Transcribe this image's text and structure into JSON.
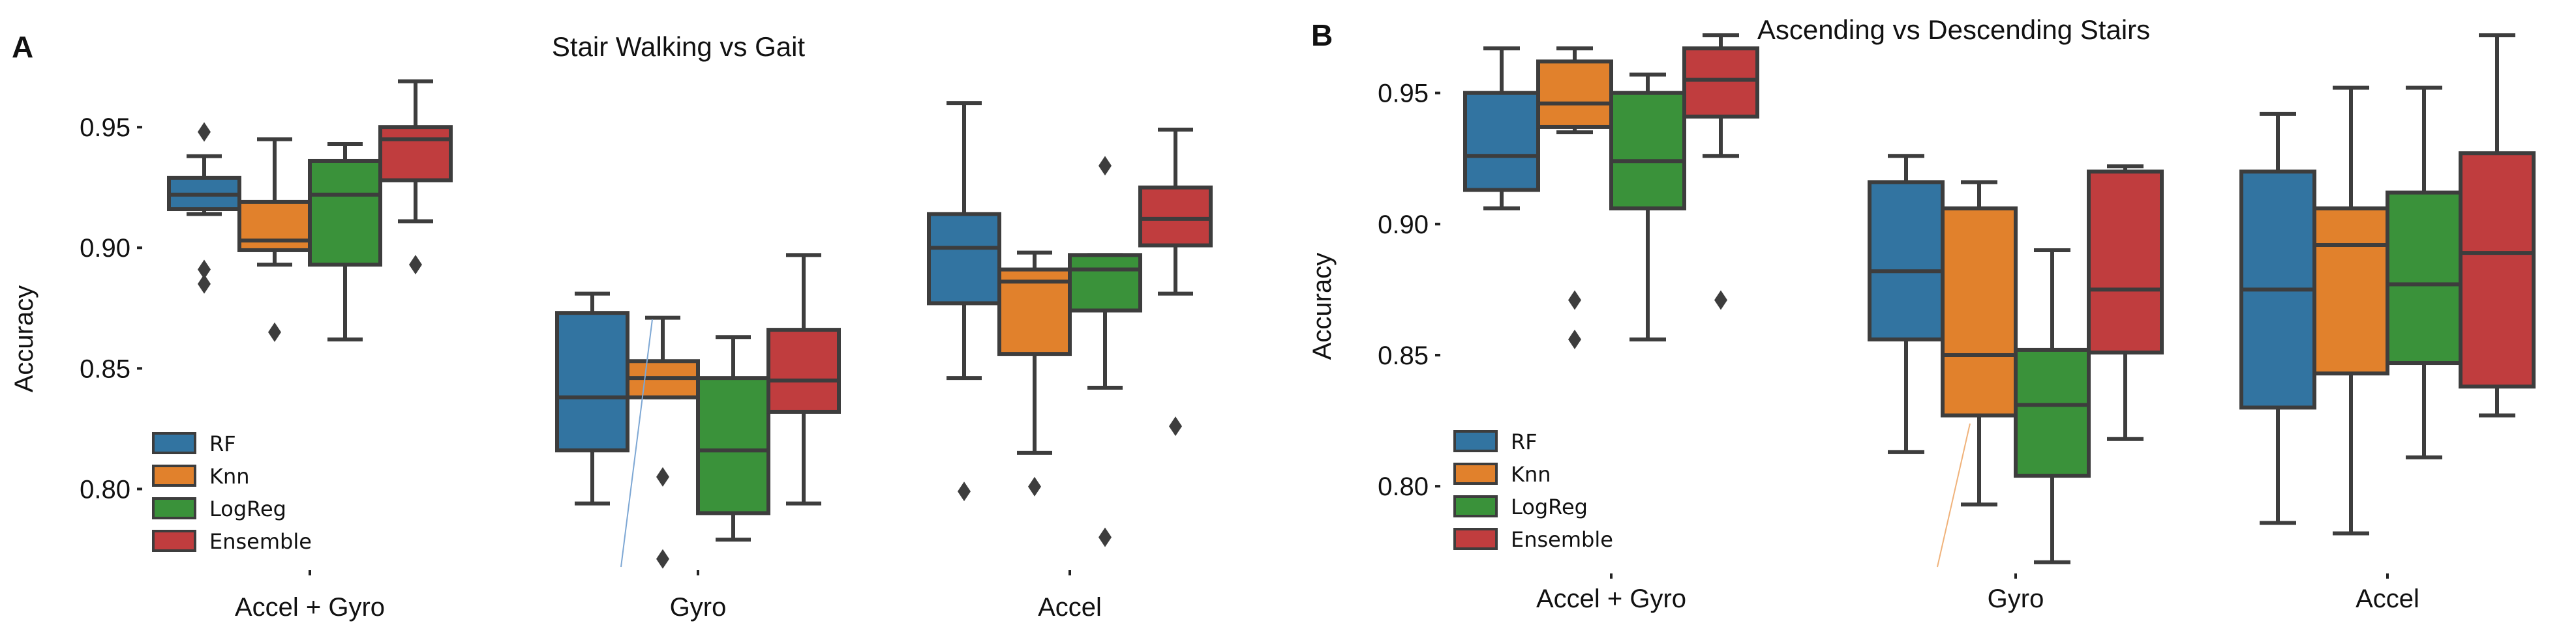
{
  "colors": {
    "RF": "#3274a1",
    "Knn": "#e1812c",
    "LogReg": "#3a923a",
    "Ensemble": "#c03d3e",
    "line": "#3d3d3d"
  },
  "chart_data": [
    {
      "type": "box",
      "panel": "A",
      "title": "Stair Walking vs Gait",
      "ylabel": "Accuracy",
      "ylim": [
        0.765,
        0.973
      ],
      "yticks": [
        0.8,
        0.85,
        0.9,
        0.95
      ],
      "ytick_labels": [
        "0.80",
        "0.85",
        "0.90",
        "0.95"
      ],
      "groups": [
        "Accel + Gyro",
        "Gyro",
        "Accel"
      ],
      "legend": [
        "RF",
        "Knn",
        "LogReg",
        "Ensemble"
      ],
      "boxes": [
        {
          "group": "Accel + Gyro",
          "model": "RF",
          "q1": 0.916,
          "median": 0.922,
          "q3": 0.929,
          "lo": 0.914,
          "hi": 0.938,
          "outliers": [
            0.885,
            0.891,
            0.948
          ]
        },
        {
          "group": "Accel + Gyro",
          "model": "Knn",
          "q1": 0.899,
          "median": 0.903,
          "q3": 0.919,
          "lo": 0.893,
          "hi": 0.945,
          "outliers": [
            0.865
          ]
        },
        {
          "group": "Accel + Gyro",
          "model": "LogReg",
          "q1": 0.893,
          "median": 0.922,
          "q3": 0.936,
          "lo": 0.862,
          "hi": 0.943,
          "outliers": []
        },
        {
          "group": "Accel + Gyro",
          "model": "Ensemble",
          "q1": 0.928,
          "median": 0.945,
          "q3": 0.95,
          "lo": 0.911,
          "hi": 0.969,
          "outliers": [
            0.893
          ]
        },
        {
          "group": "Gyro",
          "model": "RF",
          "q1": 0.816,
          "median": 0.838,
          "q3": 0.873,
          "lo": 0.794,
          "hi": 0.881,
          "outliers": []
        },
        {
          "group": "Gyro",
          "model": "Knn",
          "q1": 0.838,
          "median": 0.846,
          "q3": 0.853,
          "lo": 0.838,
          "hi": 0.871,
          "outliers": [
            0.805,
            0.771
          ]
        },
        {
          "group": "Gyro",
          "model": "LogReg",
          "q1": 0.79,
          "median": 0.816,
          "q3": 0.846,
          "lo": 0.779,
          "hi": 0.863,
          "outliers": []
        },
        {
          "group": "Gyro",
          "model": "Ensemble",
          "q1": 0.832,
          "median": 0.845,
          "q3": 0.866,
          "lo": 0.794,
          "hi": 0.897,
          "outliers": []
        },
        {
          "group": "Accel",
          "model": "RF",
          "q1": 0.877,
          "median": 0.9,
          "q3": 0.914,
          "lo": 0.846,
          "hi": 0.96,
          "outliers": [
            0.799
          ]
        },
        {
          "group": "Accel",
          "model": "Knn",
          "q1": 0.856,
          "median": 0.886,
          "q3": 0.891,
          "lo": 0.815,
          "hi": 0.898,
          "outliers": [
            0.801
          ]
        },
        {
          "group": "Accel",
          "model": "LogReg",
          "q1": 0.874,
          "median": 0.891,
          "q3": 0.897,
          "lo": 0.842,
          "hi": 0.897,
          "outliers": [
            0.934,
            0.78
          ]
        },
        {
          "group": "Accel",
          "model": "Ensemble",
          "q1": 0.901,
          "median": 0.912,
          "q3": 0.925,
          "lo": 0.881,
          "hi": 0.949,
          "outliers": [
            0.826
          ]
        }
      ]
    },
    {
      "type": "box",
      "panel": "B",
      "title": "Ascending vs Descending Stairs",
      "ylabel": "Accuracy",
      "ylim": [
        0.763,
        0.978
      ],
      "yticks": [
        0.8,
        0.85,
        0.9,
        0.95
      ],
      "ytick_labels": [
        "0.80",
        "0.85",
        "0.90",
        "0.95"
      ],
      "groups": [
        "Accel + Gyro",
        "Gyro",
        "Accel"
      ],
      "legend": [
        "RF",
        "Knn",
        "LogReg",
        "Ensemble"
      ],
      "boxes": [
        {
          "group": "Accel + Gyro",
          "model": "RF",
          "q1": 0.913,
          "median": 0.926,
          "q3": 0.95,
          "lo": 0.906,
          "hi": 0.967,
          "outliers": []
        },
        {
          "group": "Accel + Gyro",
          "model": "Knn",
          "q1": 0.937,
          "median": 0.946,
          "q3": 0.962,
          "lo": 0.935,
          "hi": 0.967,
          "outliers": [
            0.871,
            0.856
          ]
        },
        {
          "group": "Accel + Gyro",
          "model": "LogReg",
          "q1": 0.906,
          "median": 0.924,
          "q3": 0.95,
          "lo": 0.856,
          "hi": 0.957,
          "outliers": []
        },
        {
          "group": "Accel + Gyro",
          "model": "Ensemble",
          "q1": 0.941,
          "median": 0.955,
          "q3": 0.967,
          "lo": 0.926,
          "hi": 0.972,
          "outliers": [
            0.871
          ]
        },
        {
          "group": "Gyro",
          "model": "RF",
          "q1": 0.856,
          "median": 0.882,
          "q3": 0.916,
          "lo": 0.813,
          "hi": 0.926,
          "outliers": []
        },
        {
          "group": "Gyro",
          "model": "Knn",
          "q1": 0.827,
          "median": 0.85,
          "q3": 0.906,
          "lo": 0.793,
          "hi": 0.916,
          "outliers": []
        },
        {
          "group": "Gyro",
          "model": "LogReg",
          "q1": 0.804,
          "median": 0.831,
          "q3": 0.852,
          "lo": 0.771,
          "hi": 0.89,
          "outliers": []
        },
        {
          "group": "Gyro",
          "model": "Ensemble",
          "q1": 0.851,
          "median": 0.875,
          "q3": 0.92,
          "lo": 0.818,
          "hi": 0.922,
          "outliers": []
        },
        {
          "group": "Accel",
          "model": "RF",
          "q1": 0.83,
          "median": 0.875,
          "q3": 0.92,
          "lo": 0.786,
          "hi": 0.942,
          "outliers": []
        },
        {
          "group": "Accel",
          "model": "Knn",
          "q1": 0.843,
          "median": 0.892,
          "q3": 0.906,
          "lo": 0.782,
          "hi": 0.952,
          "outliers": []
        },
        {
          "group": "Accel",
          "model": "LogReg",
          "q1": 0.847,
          "median": 0.877,
          "q3": 0.912,
          "lo": 0.811,
          "hi": 0.952,
          "outliers": []
        },
        {
          "group": "Accel",
          "model": "Ensemble",
          "q1": 0.838,
          "median": 0.889,
          "q3": 0.927,
          "lo": 0.827,
          "hi": 0.972,
          "outliers": []
        }
      ]
    }
  ]
}
